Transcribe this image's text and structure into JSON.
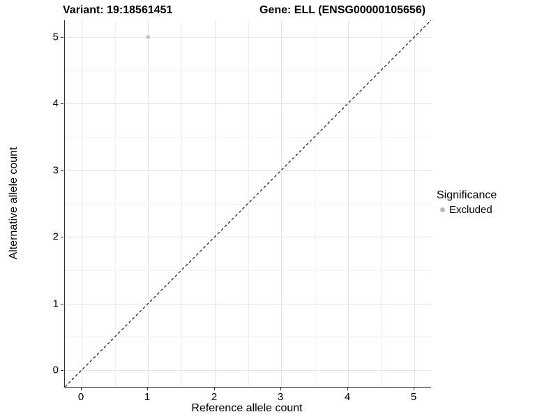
{
  "header": {
    "variant_title": "Variant: 19:18561451",
    "gene_title": "Gene: ELL (ENSG00000105656)"
  },
  "legend": {
    "title": "Significance",
    "items": [
      {
        "label": "Excluded",
        "color": "#b8b8b8",
        "marker": "circle-icon"
      }
    ]
  },
  "colors": {
    "grid_major": "#e5e5e5",
    "grid_minor": "#f2f2f2",
    "axis_line": "#333333",
    "tick_mark": "#333333",
    "text": "#000000"
  },
  "chart_data": {
    "type": "scatter",
    "title": "Variant: 19:18561451   Gene: ELL (ENSG00000105656)",
    "xlabel": "Reference allele count",
    "ylabel": "Alternative allele count",
    "xlim": [
      -0.25,
      5.25
    ],
    "ylim": [
      -0.25,
      5.25
    ],
    "x_ticks": [
      0,
      1,
      2,
      3,
      4,
      5
    ],
    "y_ticks": [
      0,
      1,
      2,
      3,
      4,
      5
    ],
    "minor_grid_step": 0.5,
    "grid": "on",
    "legend_position": "right",
    "series": [
      {
        "name": "Excluded",
        "color": "#b8b8b8",
        "marker_radius": 2.5,
        "points": [
          {
            "x": 1,
            "y": 5
          }
        ]
      }
    ],
    "reference_line": {
      "name": "identity-line",
      "style": "dashed",
      "color": "#000000",
      "x1": -0.25,
      "y1": -0.25,
      "x2": 5.25,
      "y2": 5.25
    }
  }
}
